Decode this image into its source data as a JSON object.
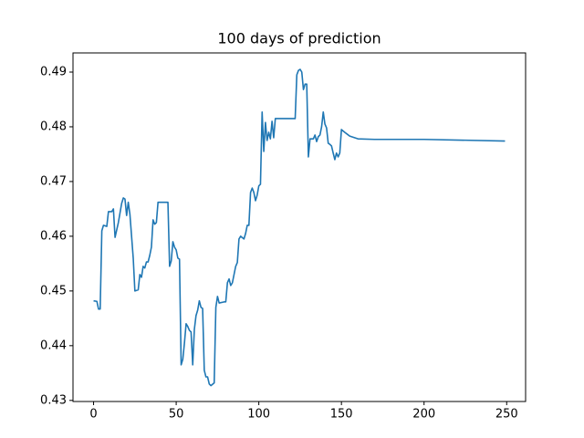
{
  "chart_data": {
    "type": "line",
    "title": "100 days of prediction",
    "x": [
      0,
      2,
      3,
      4,
      5,
      6,
      8,
      9,
      11,
      12,
      13,
      15,
      17,
      18,
      19,
      20,
      21,
      22,
      24,
      25,
      27,
      28,
      29,
      30,
      31,
      32,
      33,
      34,
      35,
      36,
      37,
      38,
      39,
      45,
      46,
      47,
      48,
      49,
      50,
      51,
      52,
      53,
      54,
      55,
      56,
      57,
      58,
      59,
      60,
      61,
      62,
      63,
      64,
      65,
      66,
      67,
      68,
      69,
      70,
      71,
      73,
      74,
      75,
      76,
      79,
      80,
      81,
      82,
      83,
      84,
      85,
      86,
      87,
      88,
      89,
      91,
      92,
      93,
      94,
      95,
      96,
      97,
      98,
      99,
      100,
      101,
      102,
      103,
      104,
      105,
      106,
      107,
      108,
      109,
      110,
      122,
      123,
      124,
      125,
      126,
      127,
      128,
      129,
      130,
      131,
      133,
      134,
      135,
      136,
      137,
      138,
      139,
      140,
      141,
      142,
      143,
      144,
      145,
      146,
      147,
      148,
      149,
      150,
      152,
      155,
      160,
      170,
      200,
      249
    ],
    "series": [
      {
        "color": "#1f77b4",
        "values": [
          0.4482,
          0.4481,
          0.4467,
          0.4467,
          0.461,
          0.462,
          0.4618,
          0.4645,
          0.4645,
          0.465,
          0.4598,
          0.4625,
          0.466,
          0.467,
          0.4668,
          0.4638,
          0.4662,
          0.464,
          0.456,
          0.45,
          0.4502,
          0.453,
          0.4525,
          0.4545,
          0.4542,
          0.4553,
          0.4553,
          0.4565,
          0.458,
          0.463,
          0.4622,
          0.4625,
          0.4662,
          0.4662,
          0.4545,
          0.4555,
          0.459,
          0.458,
          0.4575,
          0.456,
          0.4558,
          0.4365,
          0.4375,
          0.4405,
          0.444,
          0.4435,
          0.4428,
          0.4425,
          0.4365,
          0.443,
          0.4455,
          0.4465,
          0.4482,
          0.447,
          0.4468,
          0.4355,
          0.4343,
          0.4343,
          0.433,
          0.4327,
          0.4332,
          0.447,
          0.449,
          0.4478,
          0.448,
          0.448,
          0.4515,
          0.4522,
          0.451,
          0.4515,
          0.453,
          0.4545,
          0.4552,
          0.4595,
          0.46,
          0.4595,
          0.4605,
          0.462,
          0.462,
          0.468,
          0.4688,
          0.468,
          0.4665,
          0.4675,
          0.4692,
          0.4695,
          0.4827,
          0.4755,
          0.4808,
          0.4775,
          0.479,
          0.4778,
          0.481,
          0.478,
          0.4815,
          0.4815,
          0.4895,
          0.4903,
          0.4905,
          0.49,
          0.4868,
          0.4878,
          0.4878,
          0.4745,
          0.4778,
          0.4778,
          0.4785,
          0.4773,
          0.4782,
          0.4785,
          0.48,
          0.4827,
          0.4805,
          0.4798,
          0.477,
          0.4768,
          0.4765,
          0.4752,
          0.474,
          0.4752,
          0.4745,
          0.4752,
          0.4795,
          0.479,
          0.4783,
          0.4778,
          0.4777,
          0.4777,
          0.4774
        ]
      }
    ],
    "xlim": [
      -12.45,
      261.45
    ],
    "xticks": [
      0,
      50,
      100,
      150,
      200,
      250
    ],
    "ylim": [
      0.4298,
      0.4935
    ],
    "yticks": [
      0.43,
      0.44,
      0.45,
      0.46,
      0.47,
      0.48,
      0.49
    ]
  }
}
